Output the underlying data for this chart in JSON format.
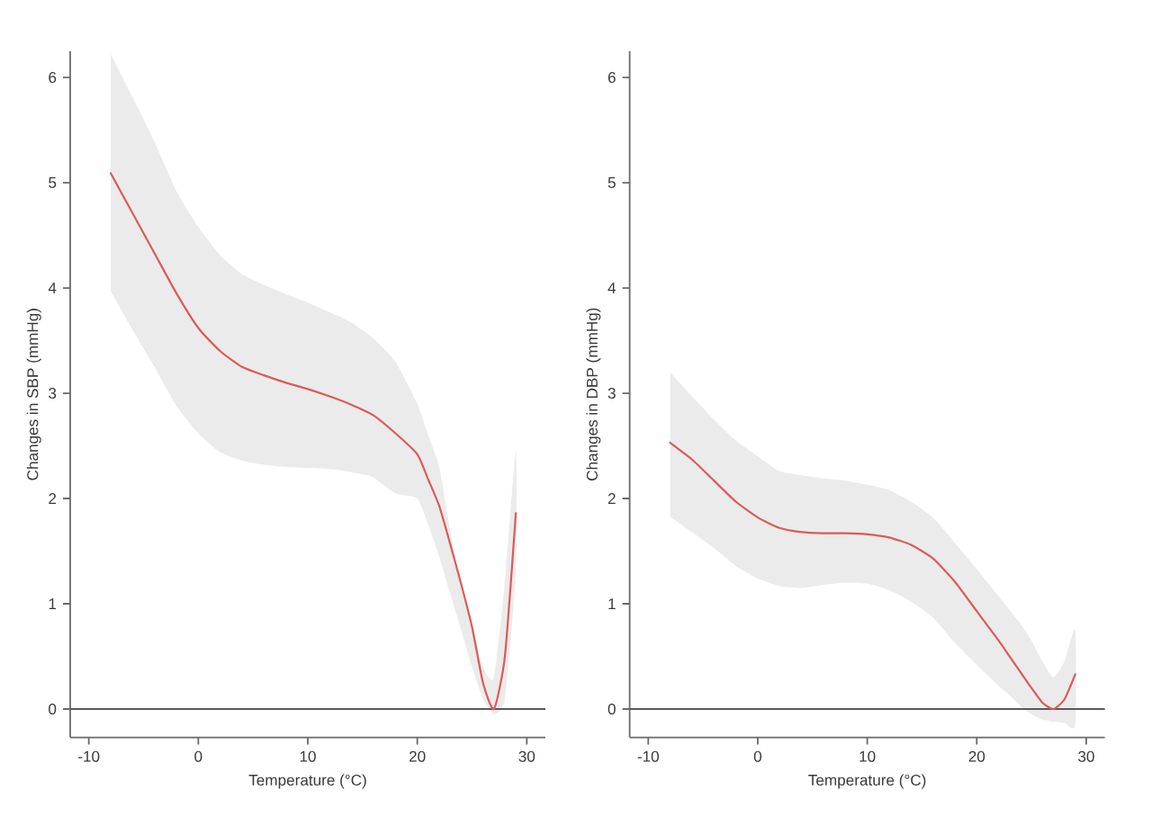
{
  "chart_data": [
    {
      "type": "line",
      "xlabel": "Temperature (°C)",
      "ylabel": "Changes in SBP (mmHg)",
      "x": [
        -8,
        -6,
        -4,
        -2,
        0,
        2,
        4,
        6,
        8,
        10,
        12,
        14,
        16,
        18,
        20,
        21,
        22,
        23,
        24,
        25,
        26,
        27,
        28,
        29
      ],
      "series": [
        {
          "color": "#dc5a5a",
          "values": [
            5.09,
            4.71,
            4.33,
            3.95,
            3.62,
            3.4,
            3.25,
            3.17,
            3.1,
            3.04,
            2.97,
            2.89,
            2.79,
            2.62,
            2.42,
            2.18,
            1.93,
            1.57,
            1.19,
            0.78,
            0.25,
            0.0,
            0.5,
            1.86
          ],
          "upper": [
            6.22,
            5.81,
            5.39,
            4.92,
            4.58,
            4.31,
            4.13,
            4.03,
            3.94,
            3.86,
            3.77,
            3.67,
            3.52,
            3.3,
            2.9,
            2.6,
            2.3,
            1.7,
            1.15,
            0.8,
            0.4,
            0.3,
            1.2,
            2.46
          ],
          "lower": [
            3.97,
            3.6,
            3.25,
            2.88,
            2.62,
            2.44,
            2.36,
            2.32,
            2.3,
            2.29,
            2.28,
            2.25,
            2.2,
            2.05,
            2.0,
            1.75,
            1.45,
            1.1,
            0.75,
            0.4,
            0.1,
            -0.05,
            0.1,
            1.3
          ]
        }
      ],
      "xlim": [
        -11.7,
        31.7
      ],
      "ylim": [
        -0.27,
        6.25
      ],
      "xticks": [
        -10,
        0,
        10,
        20,
        30
      ],
      "yticks": [
        0,
        1,
        2,
        3,
        4,
        5,
        6
      ],
      "ref_lines": [
        {
          "axis": "y",
          "value": 0,
          "color": "#5a5a5a"
        }
      ]
    },
    {
      "type": "line",
      "xlabel": "Temperature (°C)",
      "ylabel": "Changes in DBP (mmHg)",
      "x": [
        -8,
        -6,
        -4,
        -2,
        0,
        2,
        4,
        6,
        8,
        10,
        12,
        14,
        16,
        18,
        20,
        21,
        22,
        23,
        24,
        25,
        26,
        27,
        28,
        29
      ],
      "series": [
        {
          "color": "#dc5a5a",
          "values": [
            2.53,
            2.37,
            2.17,
            1.97,
            1.82,
            1.72,
            1.68,
            1.67,
            1.67,
            1.66,
            1.63,
            1.56,
            1.43,
            1.21,
            0.93,
            0.79,
            0.65,
            0.5,
            0.35,
            0.2,
            0.06,
            0.0,
            0.09,
            0.33
          ],
          "upper": [
            3.2,
            2.97,
            2.75,
            2.55,
            2.4,
            2.26,
            2.22,
            2.19,
            2.17,
            2.13,
            2.08,
            1.97,
            1.82,
            1.58,
            1.33,
            1.2,
            1.07,
            0.94,
            0.81,
            0.65,
            0.45,
            0.3,
            0.45,
            0.75
          ],
          "lower": [
            1.83,
            1.68,
            1.53,
            1.36,
            1.24,
            1.17,
            1.15,
            1.18,
            1.2,
            1.19,
            1.13,
            1.02,
            0.87,
            0.63,
            0.42,
            0.32,
            0.22,
            0.13,
            0.03,
            -0.05,
            -0.1,
            -0.12,
            -0.13,
            -0.15
          ]
        }
      ],
      "xlim": [
        -11.7,
        31.7
      ],
      "ylim": [
        -0.27,
        6.25
      ],
      "xticks": [
        -10,
        0,
        10,
        20,
        30
      ],
      "yticks": [
        0,
        1,
        2,
        3,
        4,
        5,
        6
      ],
      "ref_lines": [
        {
          "axis": "y",
          "value": 0,
          "color": "#5a5a5a"
        }
      ]
    }
  ]
}
